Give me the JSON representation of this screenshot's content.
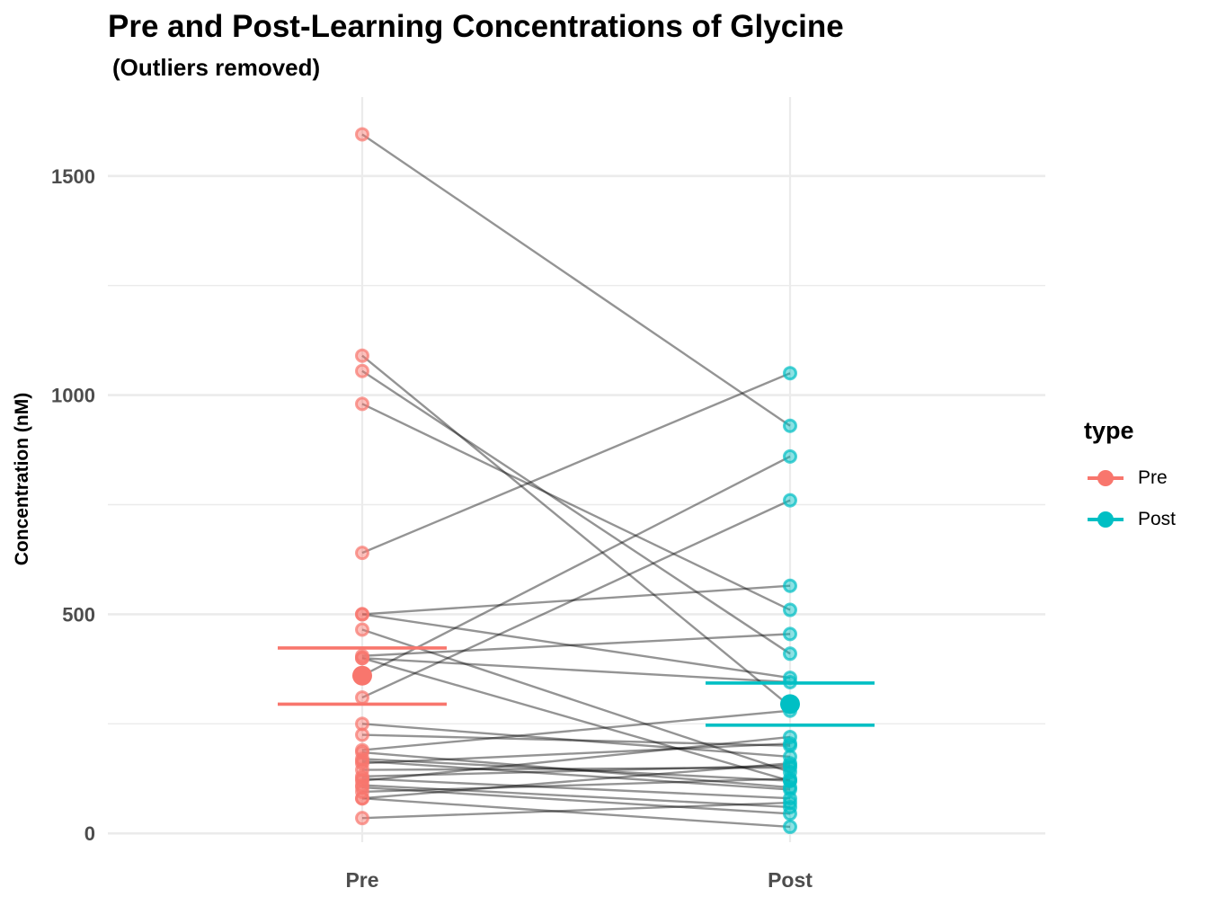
{
  "chart_data": {
    "type": "scatter",
    "title": "Pre and Post-Learning Concentrations of Glycine",
    "subtitle": "(Outliers removed)",
    "xlabel": "",
    "ylabel": "Concentration (nM)",
    "categories": [
      "Pre",
      "Post"
    ],
    "ylim": [
      -20,
      1680
    ],
    "yticks": [
      0,
      500,
      1000,
      1500
    ],
    "grid": true,
    "legend": {
      "title": "type",
      "position": "right",
      "entries": [
        {
          "label": "Pre",
          "color": "#F8766D"
        },
        {
          "label": "Post",
          "color": "#00BFC4"
        }
      ]
    },
    "colors": {
      "Pre": "#F8766D",
      "Post": "#00BFC4",
      "pair_line": "#000000"
    },
    "pairs": [
      [
        1595,
        930
      ],
      [
        1090,
        290
      ],
      [
        1055,
        410
      ],
      [
        980,
        510
      ],
      [
        640,
        1050
      ],
      [
        500,
        565
      ],
      [
        500,
        355
      ],
      [
        465,
        140
      ],
      [
        405,
        455
      ],
      [
        400,
        345
      ],
      [
        400,
        120
      ],
      [
        360,
        860
      ],
      [
        310,
        760
      ],
      [
        250,
        175
      ],
      [
        225,
        200
      ],
      [
        190,
        280
      ],
      [
        185,
        105
      ],
      [
        170,
        120
      ],
      [
        165,
        100
      ],
      [
        160,
        205
      ],
      [
        145,
        150
      ],
      [
        130,
        155
      ],
      [
        125,
        80
      ],
      [
        120,
        220
      ],
      [
        110,
        60
      ],
      [
        105,
        45
      ],
      [
        95,
        125
      ],
      [
        80,
        15
      ],
      [
        80,
        160
      ],
      [
        35,
        70
      ]
    ],
    "summary": {
      "Pre": {
        "mean": 360,
        "upper": 423,
        "lower": 295
      },
      "Post": {
        "mean": 295,
        "upper": 343,
        "lower": 247
      }
    }
  }
}
